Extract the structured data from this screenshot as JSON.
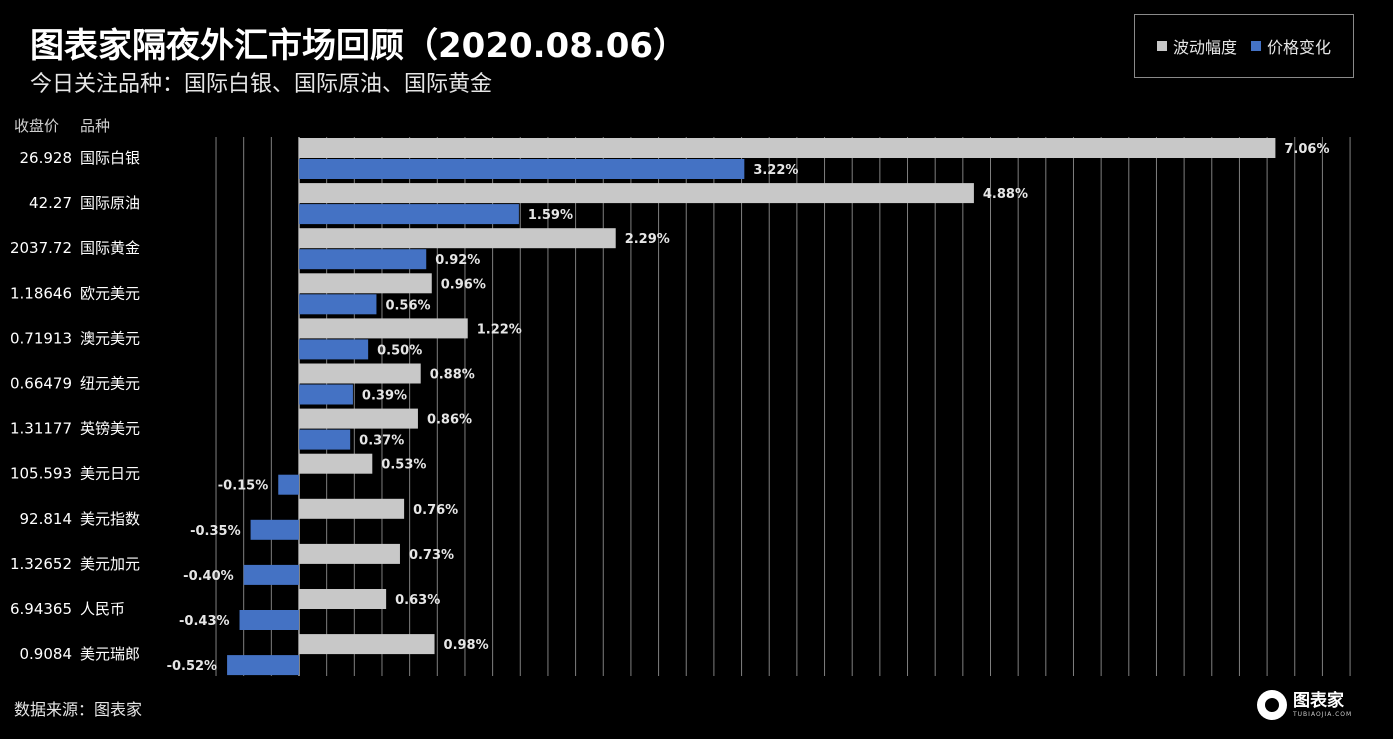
{
  "title": "图表家隔夜外汇市场回顾（2020.08.06）",
  "subtitle": "今日关注品种：国际白银、国际原油、国际黄金",
  "column_headers": {
    "close": "收盘价",
    "product": "品种"
  },
  "source": "数据来源：图表家",
  "logo": {
    "cn": "图表家",
    "en": "TUBIAOJIA.COM"
  },
  "colors": {
    "volatility": "#c8c8c8",
    "change": "#4472c4",
    "background": "#000000",
    "grid": "#7f7f7f"
  },
  "chart_data": {
    "type": "bar",
    "orientation": "horizontal",
    "title": "图表家隔夜外汇市场回顾（2020.08.06）",
    "legend_position": "top-right",
    "grid": true,
    "xlim": [
      -1.0,
      7.6
    ],
    "categories": [
      "国际白银",
      "国际原油",
      "国际黄金",
      "欧元美元",
      "澳元美元",
      "纽元美元",
      "英镑美元",
      "美元日元",
      "美元指数",
      "美元加元",
      "人民币",
      "美元瑞郎"
    ],
    "close_prices": [
      "26.928",
      "42.27",
      "2037.72",
      "1.18646",
      "0.71913",
      "0.66479",
      "1.31177",
      "105.593",
      "92.814",
      "1.32652",
      "6.94365",
      "0.9084"
    ],
    "series": [
      {
        "name": "波动幅度",
        "values": [
          7.06,
          4.88,
          2.29,
          0.96,
          1.22,
          0.88,
          0.86,
          0.53,
          0.76,
          0.73,
          0.63,
          0.98
        ],
        "labels": [
          "7.06%",
          "4.88%",
          "2.29%",
          "0.96%",
          "1.22%",
          "0.88%",
          "0.86%",
          "0.53%",
          "0.76%",
          "0.73%",
          "0.63%",
          "0.98%"
        ]
      },
      {
        "name": "价格变化",
        "values": [
          3.22,
          1.59,
          0.92,
          0.56,
          0.5,
          0.39,
          0.37,
          -0.15,
          -0.35,
          -0.4,
          -0.43,
          -0.52
        ],
        "labels": [
          "3.22%",
          "1.59%",
          "0.92%",
          "0.56%",
          "0.50%",
          "0.39%",
          "0.37%",
          "-0.15%",
          "-0.35%",
          "-0.40%",
          "-0.43%",
          "-0.52%"
        ]
      }
    ]
  }
}
